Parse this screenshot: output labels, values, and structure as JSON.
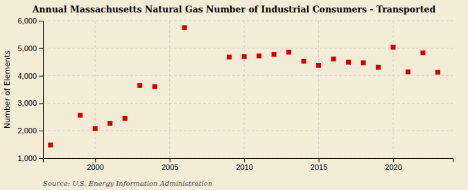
{
  "chart_data": {
    "type": "scatter",
    "title": "Annual Massachusetts Natural Gas Number of Industrial Consumers - Transported",
    "ylabel": "Number of Elements",
    "source": "Source: U.S. Energy Information Administration",
    "x": [
      1997,
      1999,
      2000,
      2001,
      2002,
      2003,
      2004,
      2006,
      2009,
      2010,
      2011,
      2012,
      2013,
      2014,
      2015,
      2016,
      2017,
      2018,
      2019,
      2020,
      2021,
      2022,
      2023
    ],
    "values": [
      1480,
      2560,
      2080,
      2270,
      2450,
      3650,
      3600,
      5750,
      4680,
      4700,
      4720,
      4780,
      4860,
      4530,
      4380,
      4610,
      4490,
      4470,
      4310,
      5040,
      4140,
      4830,
      4130
    ],
    "color": "#cc0000",
    "marker": "square",
    "xlim": [
      1996.5,
      2024
    ],
    "xticks": [
      2000,
      2005,
      2010,
      2015,
      2020
    ],
    "ylim": [
      1000,
      6000
    ],
    "yticks": [
      {
        "value": 1000,
        "label": "1,000"
      },
      {
        "value": 2000,
        "label": "2,000"
      },
      {
        "value": 3000,
        "label": "3,000"
      },
      {
        "value": 4000,
        "label": "4,000"
      },
      {
        "value": 5000,
        "label": "5,000"
      },
      {
        "value": 6000,
        "label": "6,000"
      }
    ],
    "grid": true
  }
}
